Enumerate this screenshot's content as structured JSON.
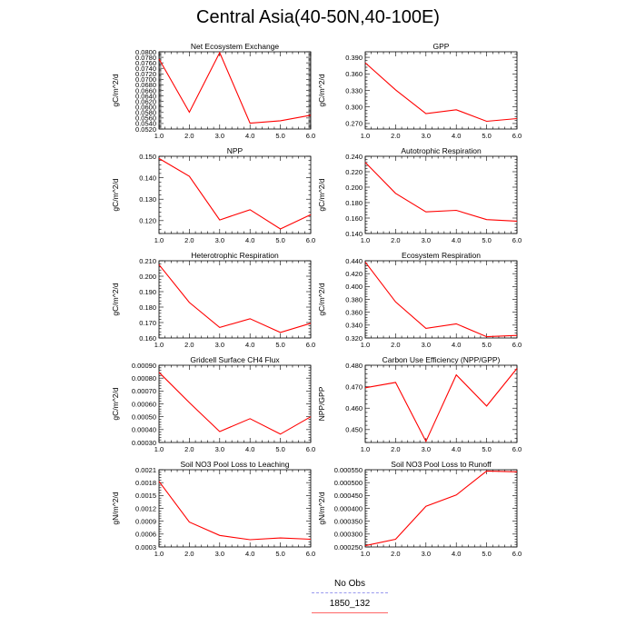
{
  "title": "Central Asia(40-50N,40-100E)",
  "legend": [
    {
      "label": "No Obs",
      "color": "#9999ee",
      "style": "dashed"
    },
    {
      "label": "1850_132",
      "color": "#ff6666",
      "style": "solid"
    }
  ],
  "line_color": "#ff0000",
  "chart_data": [
    {
      "type": "line",
      "title": "Net Ecosystem Exchange",
      "ylabel": "gC/m^2/d",
      "xlim": [
        1.0,
        6.0
      ],
      "xticks": [
        "1.0",
        "2.0",
        "3.0",
        "4.0",
        "5.0",
        "6.0"
      ],
      "ylim": [
        0.052,
        0.08
      ],
      "yticks": [
        "0.0520",
        "0.0540",
        "0.0560",
        "0.0580",
        "0.0600",
        "0.0620",
        "0.0640",
        "0.0660",
        "0.0680",
        "0.0700",
        "0.0720",
        "0.0740",
        "0.0760",
        "0.0780",
        "0.0800"
      ],
      "x": [
        1,
        2,
        3,
        4,
        5,
        6
      ],
      "y": [
        0.0774,
        0.0581,
        0.0797,
        0.0541,
        0.055,
        0.057
      ]
    },
    {
      "type": "line",
      "title": "GPP",
      "ylabel": "gC/m^2/d",
      "xlim": [
        1.0,
        6.0
      ],
      "xticks": [
        "1.0",
        "2.0",
        "3.0",
        "4.0",
        "5.0",
        "6.0"
      ],
      "ylim": [
        0.26,
        0.4
      ],
      "yticks": [
        "0.270",
        "0.300",
        "0.330",
        "0.360",
        "0.390"
      ],
      "x": [
        1,
        2,
        3,
        4,
        5,
        6
      ],
      "y": [
        0.38,
        0.331,
        0.288,
        0.295,
        0.274,
        0.279
      ]
    },
    {
      "type": "line",
      "title": "NPP",
      "ylabel": "gC/m^2/d",
      "xlim": [
        1.0,
        6.0
      ],
      "xticks": [
        "1.0",
        "2.0",
        "3.0",
        "4.0",
        "5.0",
        "6.0"
      ],
      "ylim": [
        0.114,
        0.15
      ],
      "yticks": [
        "0.120",
        "0.130",
        "0.140",
        "0.150"
      ],
      "x": [
        1,
        2,
        3,
        4,
        5,
        6
      ],
      "y": [
        0.149,
        0.1407,
        0.1203,
        0.1251,
        0.1161,
        0.1228
      ]
    },
    {
      "type": "line",
      "title": "Autotrophic Respiration",
      "ylabel": "gC/m^2/d",
      "xlim": [
        1.0,
        6.0
      ],
      "xticks": [
        "1.0",
        "2.0",
        "3.0",
        "4.0",
        "5.0",
        "6.0"
      ],
      "ylim": [
        0.14,
        0.24
      ],
      "yticks": [
        "0.140",
        "0.160",
        "0.180",
        "0.200",
        "0.220",
        "0.240"
      ],
      "x": [
        1,
        2,
        3,
        4,
        5,
        6
      ],
      "y": [
        0.232,
        0.192,
        0.168,
        0.17,
        0.158,
        0.156
      ]
    },
    {
      "type": "line",
      "title": "Heterotrophic Respiration",
      "ylabel": "gC/m^2/d",
      "xlim": [
        1.0,
        6.0
      ],
      "xticks": [
        "1.0",
        "2.0",
        "3.0",
        "4.0",
        "5.0",
        "6.0"
      ],
      "ylim": [
        0.16,
        0.21
      ],
      "yticks": [
        "0.160",
        "0.170",
        "0.180",
        "0.190",
        "0.200",
        "0.210"
      ],
      "x": [
        1,
        2,
        3,
        4,
        5,
        6
      ],
      "y": [
        0.2075,
        0.183,
        0.1668,
        0.1725,
        0.1636,
        0.1695
      ]
    },
    {
      "type": "line",
      "title": "Ecosystem Respiration",
      "ylabel": "gC/m^2/d",
      "xlim": [
        1.0,
        6.0
      ],
      "xticks": [
        "1.0",
        "2.0",
        "3.0",
        "4.0",
        "5.0",
        "6.0"
      ],
      "ylim": [
        0.32,
        0.44
      ],
      "yticks": [
        "0.320",
        "0.340",
        "0.360",
        "0.380",
        "0.400",
        "0.420",
        "0.440"
      ],
      "x": [
        1,
        2,
        3,
        4,
        5,
        6
      ],
      "y": [
        0.438,
        0.376,
        0.335,
        0.342,
        0.322,
        0.324
      ]
    },
    {
      "type": "line",
      "title": "Gridcell Surface CH4 Flux",
      "ylabel": "gC/m^2/d",
      "xlim": [
        1.0,
        6.0
      ],
      "xticks": [
        "1.0",
        "2.0",
        "3.0",
        "4.0",
        "5.0",
        "6.0"
      ],
      "ylim": [
        0.0003,
        0.0009
      ],
      "yticks": [
        "0.00030",
        "0.00040",
        "0.00050",
        "0.00060",
        "0.00070",
        "0.00080",
        "0.00090"
      ],
      "x": [
        1,
        2,
        3,
        4,
        5,
        6
      ],
      "y": [
        0.000845,
        0.00061,
        0.000385,
        0.000485,
        0.000365,
        0.0005
      ]
    },
    {
      "type": "line",
      "title": "Carbon Use Efficiency (NPP/GPP)",
      "ylabel": "NPP/GPP",
      "xlim": [
        1.0,
        6.0
      ],
      "xticks": [
        "1.0",
        "2.0",
        "3.0",
        "4.0",
        "5.0",
        "6.0"
      ],
      "ylim": [
        0.444,
        0.48
      ],
      "yticks": [
        "0.450",
        "0.460",
        "0.470",
        "0.480"
      ],
      "x": [
        1,
        2,
        3,
        4,
        5,
        6
      ],
      "y": [
        0.4695,
        0.472,
        0.4445,
        0.4755,
        0.461,
        0.4785
      ]
    },
    {
      "type": "line",
      "title": "Soil NO3 Pool Loss to Leaching",
      "ylabel": "gN/m^2/d",
      "xlim": [
        1.0,
        6.0
      ],
      "xticks": [
        "1.0",
        "2.0",
        "3.0",
        "4.0",
        "5.0",
        "6.0"
      ],
      "ylim": [
        0.0003,
        0.0021
      ],
      "yticks": [
        "0.0003",
        "0.0006",
        "0.0009",
        "0.0012",
        "0.0015",
        "0.0018",
        "0.0021"
      ],
      "x": [
        1,
        2,
        3,
        4,
        5,
        6
      ],
      "y": [
        0.00183,
        0.00088,
        0.00057,
        0.00047,
        0.00051,
        0.00048
      ]
    },
    {
      "type": "line",
      "title": "Soil NO3 Pool Loss to Runoff",
      "ylabel": "gN/m^2/d",
      "xlim": [
        1.0,
        6.0
      ],
      "xticks": [
        "1.0",
        "2.0",
        "3.0",
        "4.0",
        "5.0",
        "6.0"
      ],
      "ylim": [
        0.00025,
        0.00055
      ],
      "yticks": [
        "0.000250",
        "0.000300",
        "0.000350",
        "0.000400",
        "0.000450",
        "0.000500",
        "0.000550"
      ],
      "x": [
        1,
        2,
        3,
        4,
        5,
        6
      ],
      "y": [
        0.000255,
        0.00028,
        0.000408,
        0.000452,
        0.000545,
        0.000542
      ]
    }
  ]
}
